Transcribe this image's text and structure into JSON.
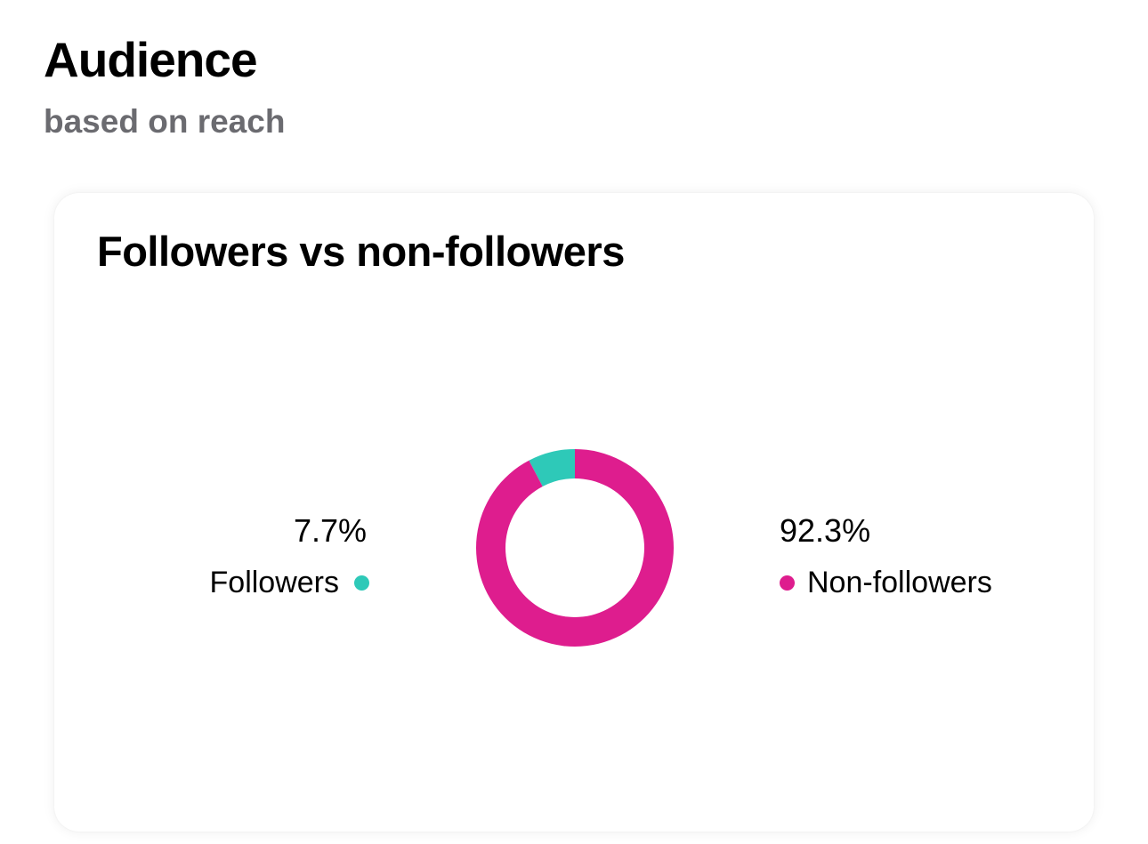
{
  "header": {
    "title": "Audience",
    "subtitle": "based on reach"
  },
  "card": {
    "title": "Followers vs non-followers"
  },
  "colors": {
    "followers": "#2ec9b8",
    "non_followers": "#de1d8e",
    "subtitle_gray": "#6b6b70"
  },
  "chart_data": {
    "type": "pie",
    "title": "Followers vs non-followers",
    "donut": true,
    "labels": [
      "Followers",
      "Non-followers"
    ],
    "values": [
      7.7,
      92.3
    ],
    "value_labels": [
      "7.7%",
      "92.3%"
    ],
    "colors": [
      "#2ec9b8",
      "#de1d8e"
    ]
  }
}
